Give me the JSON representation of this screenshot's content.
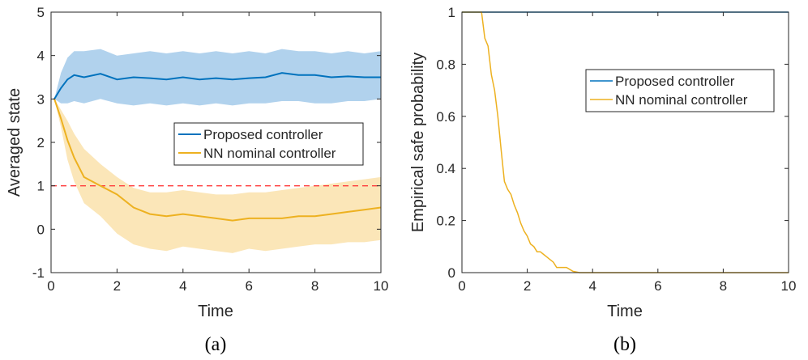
{
  "chart_data": [
    {
      "type": "line",
      "panel_label": "(a)",
      "xlabel": "Time",
      "ylabel": "Averaged state",
      "xlim": [
        0,
        10
      ],
      "ylim": [
        -1,
        5
      ],
      "xticks": [
        0,
        2,
        4,
        6,
        8,
        10
      ],
      "yticks": [
        -1,
        0,
        1,
        2,
        3,
        4,
        5
      ],
      "grid": false,
      "legend_placement": "center-right",
      "reference_line": {
        "y": 1,
        "style": "dashed",
        "color": "#FF3B3B"
      },
      "x": [
        0.1,
        0.3,
        0.5,
        0.7,
        1.0,
        1.5,
        2.0,
        2.5,
        3.0,
        3.5,
        4.0,
        4.5,
        5.0,
        5.5,
        6.0,
        6.5,
        7.0,
        7.5,
        8.0,
        8.5,
        9.0,
        9.5,
        10.0
      ],
      "series": [
        {
          "name": "Proposed controller",
          "color": "#0072BD",
          "band_color": "#A9CDEB",
          "mean": [
            3.0,
            3.25,
            3.45,
            3.55,
            3.5,
            3.58,
            3.45,
            3.5,
            3.48,
            3.45,
            3.5,
            3.45,
            3.48,
            3.45,
            3.48,
            3.5,
            3.6,
            3.55,
            3.55,
            3.5,
            3.52,
            3.5,
            3.5
          ],
          "upper": [
            3.0,
            3.6,
            3.95,
            4.1,
            4.1,
            4.15,
            4.0,
            4.05,
            4.1,
            4.05,
            4.1,
            4.05,
            4.1,
            4.05,
            4.1,
            4.05,
            4.15,
            4.1,
            4.1,
            4.05,
            4.1,
            4.05,
            4.1
          ],
          "lower": [
            3.0,
            2.9,
            2.9,
            2.95,
            2.9,
            3.0,
            2.9,
            2.85,
            2.9,
            2.85,
            2.9,
            2.85,
            2.9,
            2.85,
            2.9,
            2.9,
            2.95,
            2.95,
            2.9,
            2.9,
            2.95,
            2.95,
            3.0
          ]
        },
        {
          "name": "NN nominal controller",
          "color": "#EDB120",
          "band_color": "#FBE3B0",
          "mean": [
            3.0,
            2.55,
            2.05,
            1.65,
            1.2,
            1.0,
            0.8,
            0.5,
            0.35,
            0.3,
            0.35,
            0.3,
            0.25,
            0.2,
            0.25,
            0.25,
            0.25,
            0.3,
            0.3,
            0.35,
            0.4,
            0.45,
            0.5
          ],
          "upper": [
            3.0,
            2.75,
            2.5,
            2.2,
            1.85,
            1.5,
            1.2,
            0.95,
            0.85,
            0.85,
            0.9,
            0.85,
            0.8,
            0.8,
            0.85,
            0.85,
            0.9,
            0.95,
            1.0,
            1.05,
            1.1,
            1.15,
            1.2
          ],
          "lower": [
            3.0,
            2.35,
            1.6,
            1.1,
            0.6,
            0.3,
            -0.1,
            -0.35,
            -0.45,
            -0.5,
            -0.4,
            -0.45,
            -0.5,
            -0.55,
            -0.45,
            -0.5,
            -0.45,
            -0.4,
            -0.35,
            -0.35,
            -0.3,
            -0.3,
            -0.25
          ]
        }
      ]
    },
    {
      "type": "line",
      "panel_label": "(b)",
      "xlabel": "Time",
      "ylabel": "Empirical safe probability",
      "xlim": [
        0,
        10
      ],
      "ylim": [
        0,
        1
      ],
      "xticks": [
        0,
        2,
        4,
        6,
        8,
        10
      ],
      "yticks": [
        0,
        0.2,
        0.4,
        0.6,
        0.8,
        1
      ],
      "grid": false,
      "legend_placement": "top-right",
      "series": [
        {
          "name": "Proposed controller",
          "color": "#0072BD",
          "x": [
            0,
            10
          ],
          "y": [
            1,
            1
          ]
        },
        {
          "name": "NN nominal controller",
          "color": "#EDB120",
          "x": [
            0,
            0.6,
            0.7,
            0.8,
            0.9,
            1.0,
            1.1,
            1.2,
            1.3,
            1.4,
            1.5,
            1.6,
            1.7,
            1.8,
            1.9,
            2.0,
            2.1,
            2.2,
            2.3,
            2.4,
            2.5,
            2.6,
            2.7,
            2.8,
            2.9,
            3.0,
            3.2,
            3.4,
            3.6,
            3.8,
            10.0
          ],
          "y": [
            1.0,
            1.0,
            0.9,
            0.87,
            0.76,
            0.7,
            0.6,
            0.47,
            0.35,
            0.32,
            0.3,
            0.26,
            0.23,
            0.19,
            0.16,
            0.14,
            0.11,
            0.1,
            0.08,
            0.08,
            0.07,
            0.06,
            0.05,
            0.04,
            0.02,
            0.02,
            0.02,
            0.005,
            0.0,
            0.0,
            0.0
          ]
        }
      ]
    }
  ]
}
